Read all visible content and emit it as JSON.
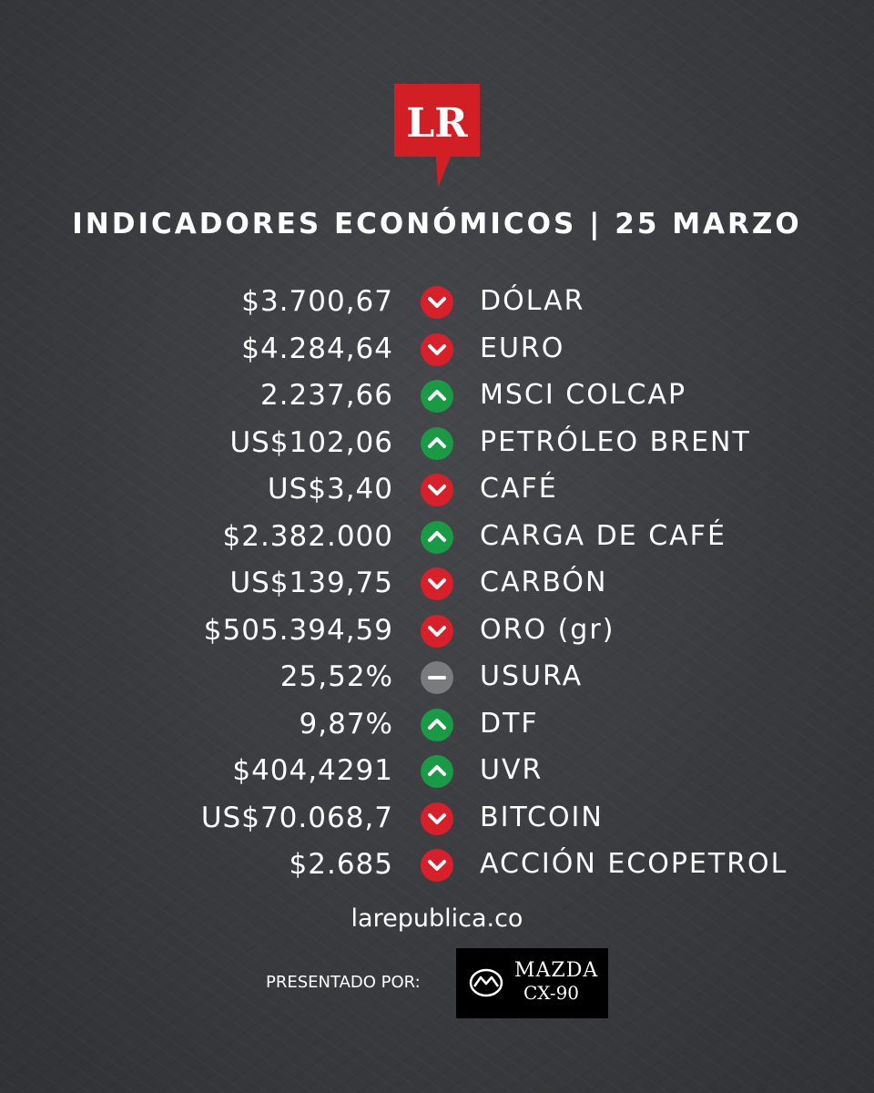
{
  "logo": {
    "text": "LR",
    "color": "#d21f26"
  },
  "title": "INDICADORES ECONÓMICOS | 25 MARZO",
  "colors": {
    "down": "#d8202a",
    "up": "#1a9a45",
    "flat": "#7a7b7d"
  },
  "indicators": [
    {
      "value": "$3.700,67",
      "label": "DÓLAR",
      "trend": "down",
      "icon": "chevron-down-icon"
    },
    {
      "value": "$4.284,64",
      "label": "EURO",
      "trend": "down",
      "icon": "chevron-down-icon"
    },
    {
      "value": "2.237,66",
      "label": "MSCI COLCAP",
      "trend": "up",
      "icon": "chevron-up-icon"
    },
    {
      "value": "US$102,06",
      "label": "PETRÓLEO BRENT",
      "trend": "up",
      "icon": "chevron-up-icon"
    },
    {
      "value": "US$3,40",
      "label": "CAFÉ",
      "trend": "down",
      "icon": "chevron-down-icon"
    },
    {
      "value": "$2.382.000",
      "label": "CARGA DE CAFÉ",
      "trend": "up",
      "icon": "chevron-up-icon"
    },
    {
      "value": "US$139,75",
      "label": "CARBÓN",
      "trend": "down",
      "icon": "chevron-down-icon"
    },
    {
      "value": "$505.394,59",
      "label": "ORO (gr)",
      "trend": "down",
      "icon": "chevron-down-icon"
    },
    {
      "value": "25,52%",
      "label": "USURA",
      "trend": "flat",
      "icon": "minus-icon"
    },
    {
      "value": "9,87%",
      "label": "DTF",
      "trend": "up",
      "icon": "chevron-up-icon"
    },
    {
      "value": "$404,4291",
      "label": "UVR",
      "trend": "up",
      "icon": "chevron-up-icon"
    },
    {
      "value": "US$70.068,7",
      "label": "BITCOIN",
      "trend": "down",
      "icon": "chevron-down-icon"
    },
    {
      "value": "$2.685",
      "label": "ACCIÓN ECOPETROL",
      "trend": "down",
      "icon": "chevron-down-icon"
    }
  ],
  "footer": {
    "site": "larepublica.co",
    "presented_by": "PRESENTADO POR:",
    "sponsor": {
      "brand": "MAZDA",
      "model": "CX-90"
    }
  }
}
